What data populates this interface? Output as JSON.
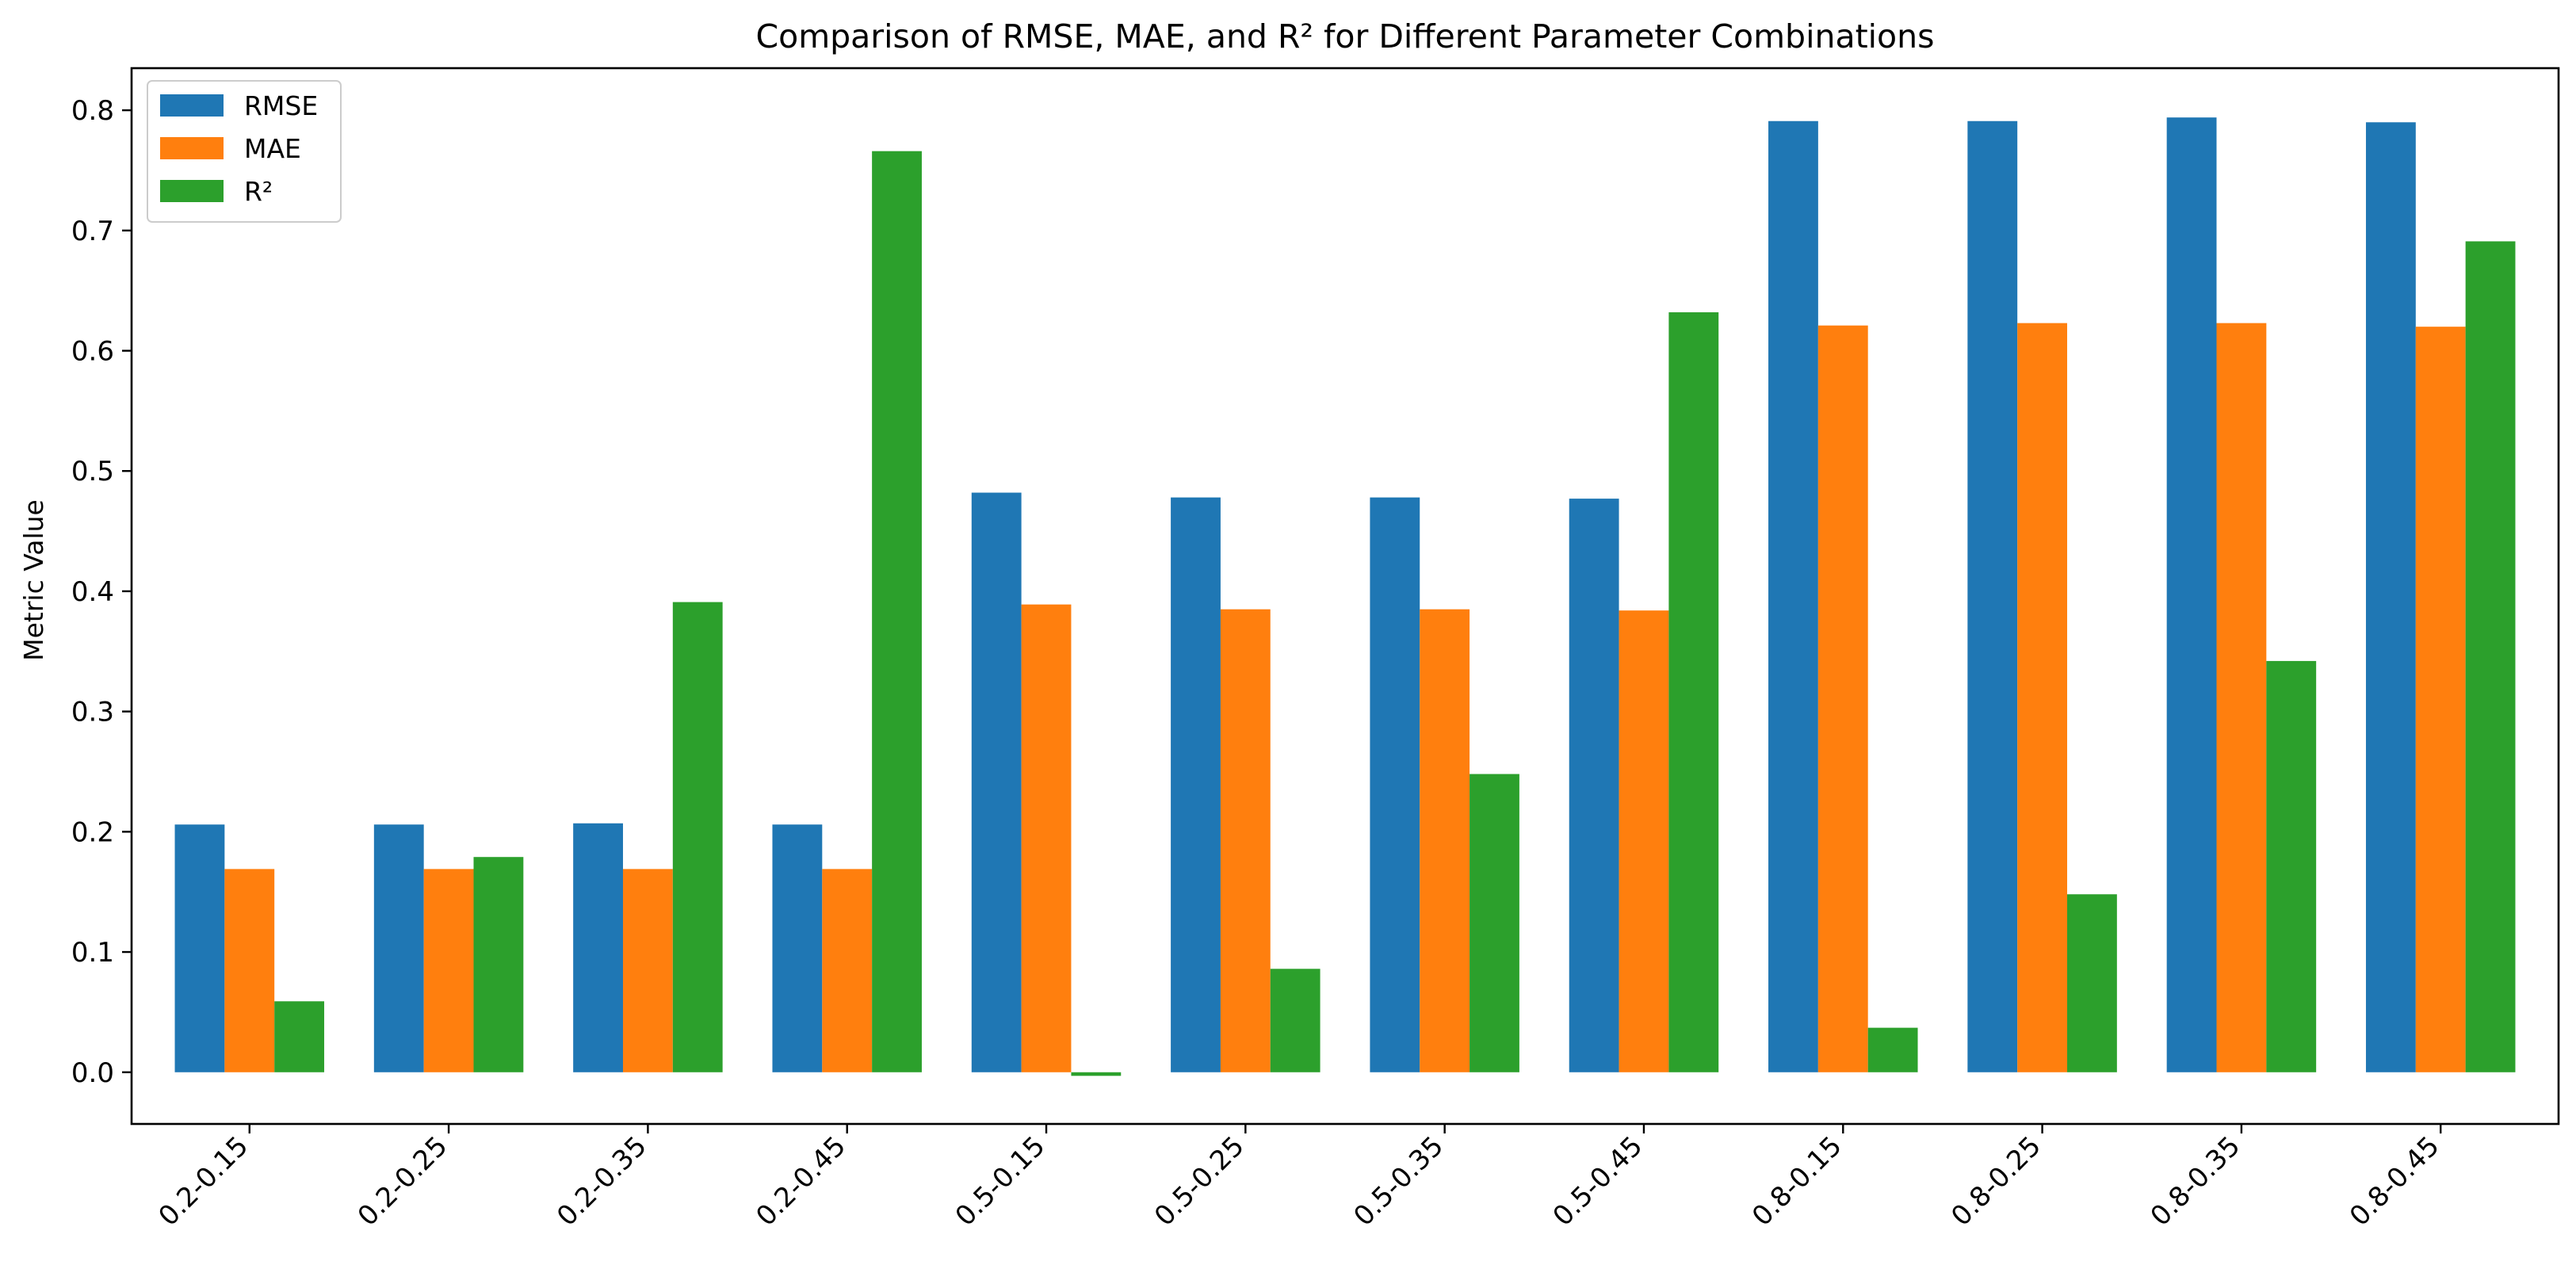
{
  "chart_data": {
    "type": "bar",
    "title": "Comparison of RMSE, MAE, and R² for Different Parameter Combinations",
    "xlabel": "",
    "ylabel": "Metric Value",
    "ylim": [
      -0.043,
      0.835
    ],
    "yticks": [
      0.0,
      0.1,
      0.2,
      0.3,
      0.4,
      0.5,
      0.6,
      0.7,
      0.8
    ],
    "ytick_labels": [
      "0.0",
      "0.1",
      "0.2",
      "0.3",
      "0.4",
      "0.5",
      "0.6",
      "0.7",
      "0.8"
    ],
    "grid": false,
    "legend_position": "top-left",
    "categories": [
      "0.2-0.15",
      "0.2-0.25",
      "0.2-0.35",
      "0.2-0.45",
      "0.5-0.15",
      "0.5-0.25",
      "0.5-0.35",
      "0.5-0.45",
      "0.8-0.15",
      "0.8-0.25",
      "0.8-0.35",
      "0.8-0.45"
    ],
    "series": [
      {
        "name": "RMSE",
        "color": "#1f77b4",
        "values": [
          0.206,
          0.206,
          0.207,
          0.206,
          0.482,
          0.478,
          0.478,
          0.477,
          0.791,
          0.791,
          0.794,
          0.79
        ]
      },
      {
        "name": "MAE",
        "color": "#ff7f0e",
        "values": [
          0.169,
          0.169,
          0.169,
          0.169,
          0.389,
          0.385,
          0.385,
          0.384,
          0.621,
          0.623,
          0.623,
          0.62
        ]
      },
      {
        "name": "R²",
        "color": "#2ca02c",
        "values": [
          0.059,
          0.179,
          0.391,
          0.766,
          -0.003,
          0.086,
          0.248,
          0.632,
          0.037,
          0.148,
          0.342,
          0.691
        ]
      }
    ]
  }
}
